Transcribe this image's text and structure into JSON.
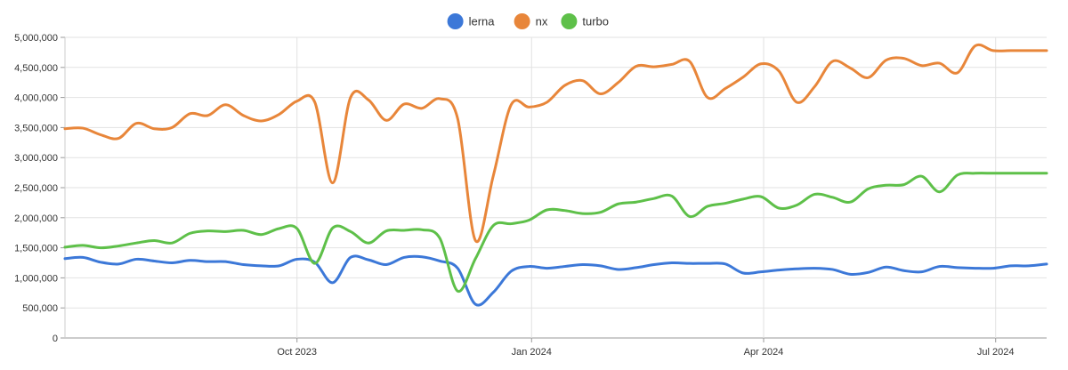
{
  "chart_data": {
    "type": "line",
    "title": "",
    "xlabel": "",
    "ylabel": "",
    "ylim": [
      0,
      5000000
    ],
    "y_ticks": [
      0,
      500000,
      1000000,
      1500000,
      2000000,
      2500000,
      3000000,
      3500000,
      4000000,
      4500000,
      5000000
    ],
    "y_tick_labels": [
      "0",
      "500,000",
      "1,000,000",
      "1,500,000",
      "2,000,000",
      "2,500,000",
      "3,000,000",
      "3,500,000",
      "4,000,000",
      "4,500,000",
      "5,000,000"
    ],
    "xlim": [
      "2023-07-02",
      "2024-07-21"
    ],
    "x_ticks": [
      "2023-10-01",
      "2024-01-01",
      "2024-04-01",
      "2024-07-01"
    ],
    "x_tick_labels": [
      "Oct 2023",
      "Jan 2024",
      "Apr 2024",
      "Jul 2024"
    ],
    "grid": true,
    "legend_position": "top-center",
    "x": [
      "2023-07-02",
      "2023-07-09",
      "2023-07-16",
      "2023-07-23",
      "2023-07-30",
      "2023-08-06",
      "2023-08-13",
      "2023-08-20",
      "2023-08-27",
      "2023-09-03",
      "2023-09-10",
      "2023-09-17",
      "2023-09-24",
      "2023-10-01",
      "2023-10-08",
      "2023-10-15",
      "2023-10-22",
      "2023-10-29",
      "2023-11-05",
      "2023-11-12",
      "2023-11-19",
      "2023-11-26",
      "2023-12-03",
      "2023-12-10",
      "2023-12-17",
      "2023-12-24",
      "2023-12-31",
      "2024-01-07",
      "2024-01-14",
      "2024-01-21",
      "2024-01-28",
      "2024-02-04",
      "2024-02-11",
      "2024-02-18",
      "2024-02-25",
      "2024-03-03",
      "2024-03-10",
      "2024-03-17",
      "2024-03-24",
      "2024-03-31",
      "2024-04-07",
      "2024-04-14",
      "2024-04-21",
      "2024-04-28",
      "2024-05-05",
      "2024-05-12",
      "2024-05-19",
      "2024-05-26",
      "2024-06-02",
      "2024-06-09",
      "2024-06-16",
      "2024-06-23",
      "2024-06-30",
      "2024-07-07",
      "2024-07-14",
      "2024-07-21"
    ],
    "series": [
      {
        "name": "lerna",
        "color": "#3c78d8",
        "values": [
          1320000,
          1340000,
          1260000,
          1230000,
          1310000,
          1280000,
          1250000,
          1290000,
          1270000,
          1270000,
          1220000,
          1200000,
          1200000,
          1310000,
          1260000,
          920000,
          1340000,
          1300000,
          1220000,
          1340000,
          1350000,
          1280000,
          1160000,
          560000,
          760000,
          1110000,
          1190000,
          1160000,
          1190000,
          1220000,
          1200000,
          1140000,
          1170000,
          1220000,
          1250000,
          1240000,
          1240000,
          1230000,
          1080000,
          1100000,
          1130000,
          1150000,
          1160000,
          1140000,
          1060000,
          1090000,
          1180000,
          1120000,
          1100000,
          1190000,
          1170000,
          1160000,
          1160000,
          1200000,
          1200000,
          1230000
        ]
      },
      {
        "name": "nx",
        "color": "#e8863a",
        "values": [
          3480000,
          3490000,
          3380000,
          3320000,
          3570000,
          3480000,
          3500000,
          3730000,
          3700000,
          3880000,
          3700000,
          3610000,
          3720000,
          3940000,
          3920000,
          2580000,
          4000000,
          3960000,
          3620000,
          3890000,
          3820000,
          3980000,
          3650000,
          1620000,
          2700000,
          3880000,
          3840000,
          3920000,
          4200000,
          4280000,
          4060000,
          4250000,
          4520000,
          4510000,
          4550000,
          4600000,
          4000000,
          4150000,
          4340000,
          4560000,
          4440000,
          3920000,
          4180000,
          4600000,
          4490000,
          4330000,
          4620000,
          4650000,
          4530000,
          4570000,
          4410000,
          4860000,
          4780000,
          4780000,
          4780000,
          4780000
        ]
      },
      {
        "name": "turbo",
        "color": "#5ec049",
        "values": [
          1510000,
          1540000,
          1500000,
          1530000,
          1580000,
          1620000,
          1580000,
          1740000,
          1780000,
          1770000,
          1790000,
          1720000,
          1820000,
          1820000,
          1240000,
          1830000,
          1770000,
          1580000,
          1780000,
          1790000,
          1800000,
          1660000,
          780000,
          1320000,
          1870000,
          1900000,
          1960000,
          2130000,
          2120000,
          2070000,
          2090000,
          2230000,
          2260000,
          2320000,
          2360000,
          2020000,
          2190000,
          2240000,
          2310000,
          2350000,
          2160000,
          2210000,
          2390000,
          2340000,
          2260000,
          2480000,
          2540000,
          2550000,
          2690000,
          2430000,
          2710000,
          2740000,
          2740000,
          2740000,
          2740000,
          2740000
        ]
      }
    ]
  }
}
